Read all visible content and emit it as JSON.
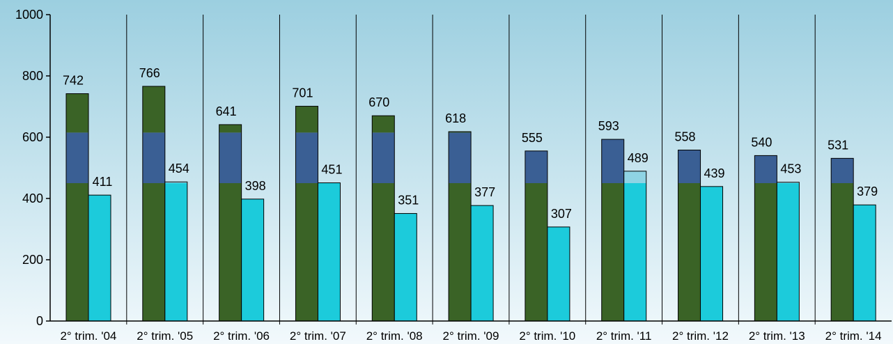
{
  "chart_data": {
    "type": "bar",
    "title": "",
    "xlabel": "",
    "ylabel": "",
    "ylim": [
      0,
      1000
    ],
    "yticks": [
      0,
      200,
      400,
      600,
      800,
      1000
    ],
    "grid": false,
    "legend": "none",
    "categories": [
      "2° trim. '04",
      "2° trim. '05",
      "2° trim. '06",
      "2° trim. '07",
      "2° trim. '08",
      "2° trim. '09",
      "2° trim. '10",
      "2° trim. '11",
      "2° trim. '12",
      "2° trim. '13",
      "2° trim. '14"
    ],
    "left_bar": {
      "totals": [
        742,
        766,
        641,
        701,
        670,
        618,
        555,
        593,
        558,
        540,
        531
      ],
      "bands": [
        {
          "from": 0,
          "to": 450,
          "color": "#3a6326"
        },
        {
          "from": 450,
          "to": 615,
          "color": "#3a5f94"
        },
        {
          "from": 615,
          "to": null,
          "color": "#3a6326"
        }
      ]
    },
    "right_bar": {
      "totals": [
        411,
        454,
        398,
        451,
        351,
        377,
        307,
        489,
        439,
        453,
        379
      ],
      "bands": [
        {
          "from": 0,
          "to": 450,
          "color": "#1ccbdb"
        },
        {
          "from": 450,
          "to": null,
          "color": "#8fd4e4"
        }
      ]
    }
  },
  "colors": {
    "background_top": "#9ccfe0",
    "background_bottom": "#f2f9fc",
    "axis": "#000000",
    "text": "#000000"
  }
}
